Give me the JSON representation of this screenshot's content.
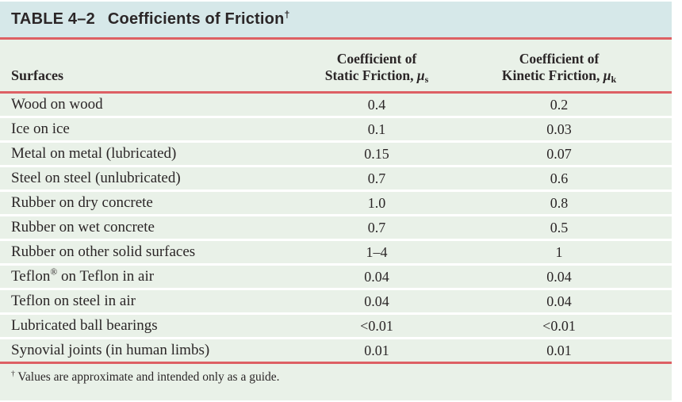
{
  "colors": {
    "title_bg": "#d6e8e9",
    "band_bg": "#e9f1e8",
    "rule_red": "#dd6064",
    "text": "#2b2627"
  },
  "table": {
    "title": {
      "label": "TABLE 4–2",
      "text": "Coefficients of Friction",
      "dagger": "†"
    },
    "header": {
      "surfaces": "Surfaces",
      "static": {
        "line1": "Coefficient of",
        "line2": "Static Friction, ",
        "mu": "μ",
        "sub": "s"
      },
      "kinetic": {
        "line1": "Coefficient of",
        "line2": "Kinetic Friction, ",
        "mu": "μ",
        "sub": "k"
      }
    },
    "rows": [
      {
        "pre": "Wood on wood",
        "sup": "",
        "post": "",
        "static": "0.4",
        "kinetic": "0.2"
      },
      {
        "pre": "Ice on ice",
        "sup": "",
        "post": "",
        "static": "0.1",
        "kinetic": "0.03"
      },
      {
        "pre": "Metal on metal (lubricated)",
        "sup": "",
        "post": "",
        "static": "0.15",
        "kinetic": "0.07"
      },
      {
        "pre": "Steel on steel (unlubricated)",
        "sup": "",
        "post": "",
        "static": "0.7",
        "kinetic": "0.6"
      },
      {
        "pre": "Rubber on dry concrete",
        "sup": "",
        "post": "",
        "static": "1.0",
        "kinetic": "0.8"
      },
      {
        "pre": "Rubber on wet concrete",
        "sup": "",
        "post": "",
        "static": "0.7",
        "kinetic": "0.5"
      },
      {
        "pre": "Rubber on other solid surfaces",
        "sup": "",
        "post": "",
        "static": "1–4",
        "kinetic": "1"
      },
      {
        "pre": "Teflon",
        "sup": "®",
        "post": " on Teflon in air",
        "static": "0.04",
        "kinetic": "0.04"
      },
      {
        "pre": "Teflon on steel in air",
        "sup": "",
        "post": "",
        "static": "0.04",
        "kinetic": "0.04"
      },
      {
        "pre": "Lubricated ball bearings",
        "sup": "",
        "post": "",
        "static": "<0.01",
        "kinetic": "<0.01"
      },
      {
        "pre": "Synovial joints (in human limbs)",
        "sup": "",
        "post": "",
        "static": "0.01",
        "kinetic": "0.01"
      }
    ],
    "footnote": {
      "dagger": "†",
      "text": "Values are approximate and intended only as a guide."
    }
  },
  "chart_data": {
    "type": "table",
    "title": "TABLE 4–2 Coefficients of Friction†",
    "columns": [
      "Surfaces",
      "Coefficient of Static Friction, μs",
      "Coefficient of Kinetic Friction, μk"
    ],
    "rows": [
      [
        "Wood on wood",
        "0.4",
        "0.2"
      ],
      [
        "Ice on ice",
        "0.1",
        "0.03"
      ],
      [
        "Metal on metal (lubricated)",
        "0.15",
        "0.07"
      ],
      [
        "Steel on steel (unlubricated)",
        "0.7",
        "0.6"
      ],
      [
        "Rubber on dry concrete",
        "1.0",
        "0.8"
      ],
      [
        "Rubber on wet concrete",
        "0.7",
        "0.5"
      ],
      [
        "Rubber on other solid surfaces",
        "1–4",
        "1"
      ],
      [
        "Teflon® on Teflon in air",
        "0.04",
        "0.04"
      ],
      [
        "Teflon on steel in air",
        "0.04",
        "0.04"
      ],
      [
        "Lubricated ball bearings",
        "<0.01",
        "<0.01"
      ],
      [
        "Synovial joints (in human limbs)",
        "0.01",
        "0.01"
      ]
    ],
    "footnote": "† Values are approximate and intended only as a guide."
  }
}
